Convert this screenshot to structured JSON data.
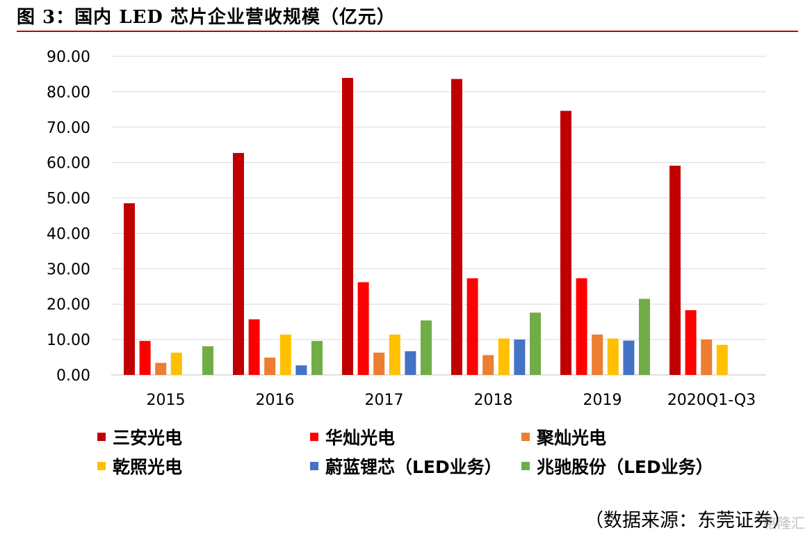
{
  "figure": {
    "title": "图 3：国内 LED 芯片企业营收规模（亿元）",
    "source": "（数据来源：东莞证券）",
    "watermark": "格隆汇"
  },
  "chart_data": {
    "type": "bar",
    "title": "",
    "xlabel": "",
    "ylabel": "",
    "ylim": [
      0,
      90
    ],
    "yticks": [
      "0.00",
      "10.00",
      "20.00",
      "30.00",
      "40.00",
      "50.00",
      "60.00",
      "70.00",
      "80.00",
      "90.00"
    ],
    "grid": true,
    "legend_position": "bottom",
    "categories": [
      "2015",
      "2016",
      "2017",
      "2018",
      "2019",
      "2020Q1-Q3"
    ],
    "series": [
      {
        "name": "三安光电",
        "color": "#c00000",
        "values": [
          48.5,
          62.7,
          83.9,
          83.6,
          74.6,
          59.1
        ]
      },
      {
        "name": "华灿光电",
        "color": "#ff0000",
        "values": [
          9.6,
          15.7,
          26.2,
          27.3,
          27.3,
          18.3
        ]
      },
      {
        "name": "聚灿光电",
        "color": "#ed7d31",
        "values": [
          3.4,
          4.9,
          6.3,
          5.6,
          11.4,
          10.0
        ]
      },
      {
        "name": "乾照光电",
        "color": "#ffc000",
        "values": [
          6.3,
          11.4,
          11.4,
          10.3,
          10.3,
          8.5
        ]
      },
      {
        "name": "蔚蓝锂芯（LED业务）",
        "color": "#4472c4",
        "values": [
          null,
          2.7,
          6.7,
          10.0,
          9.7,
          null
        ]
      },
      {
        "name": "兆驰股份（LED业务）",
        "color": "#70ad47",
        "values": [
          8.1,
          9.6,
          15.4,
          17.6,
          21.5,
          null
        ]
      }
    ]
  }
}
